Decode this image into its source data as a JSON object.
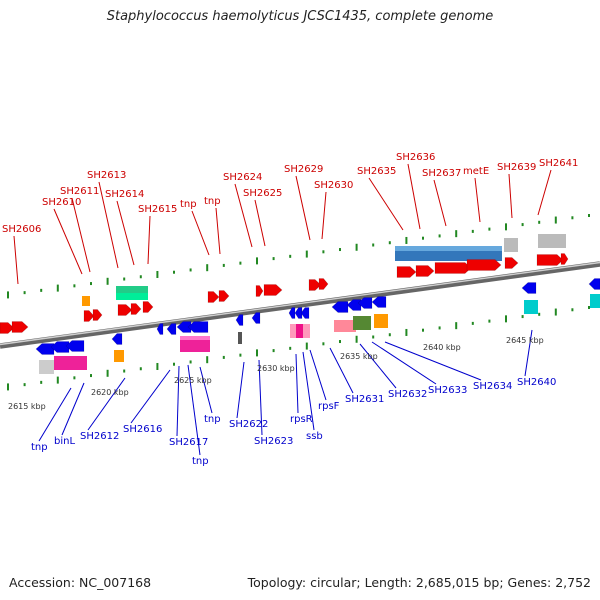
{
  "title": "Staphylococcus haemolyticus JCSC1435, complete genome",
  "footer": {
    "accession": "Accession: NC_007168",
    "summary": "Topology: circular; Length: 2,685,015 bp; Genes: 2,752"
  },
  "colors": {
    "top_label": "#cc0000",
    "bottom_label": "#0000cc",
    "forward_gene": "#ee0000",
    "reverse_gene": "#0000ee",
    "track_tick": "#228822",
    "axis": "#777777"
  },
  "kbp_labels": [
    "2615 kbp",
    "2620 kbp",
    "2625 kbp",
    "2630 kbp",
    "2635 kbp",
    "2640 kbp",
    "2645 kbp"
  ],
  "top_labels": [
    "SH2606",
    "SH2610",
    "SH2611",
    "SH2613",
    "SH2614",
    "SH2615",
    "tnp",
    "tnp",
    "SH2624",
    "SH2625",
    "SH2629",
    "SH2630",
    "SH2635",
    "SH2636",
    "SH2637",
    "metE",
    "SH2639",
    "SH2641"
  ],
  "bottom_labels": [
    "tnp",
    "binL",
    "SH2612",
    "SH2616",
    "SH2617",
    "tnp",
    "tnp",
    "SH2622",
    "SH2623",
    "rpsR",
    "ssb",
    "rpsF",
    "SH2631",
    "SH2632",
    "SH2633",
    "SH2634",
    "SH2640"
  ]
}
